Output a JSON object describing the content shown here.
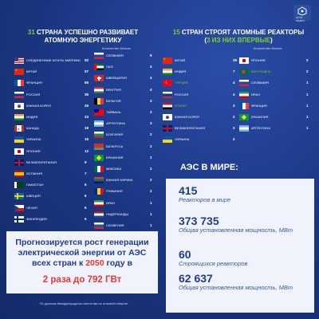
{
  "header_left": {
    "count": "31",
    "title_part1": "СТРАНА УСПЕШНО РАЗВИВАЕТ",
    "title_part2": "АТОМНУЮ ЭНЕРГЕТИКУ",
    "units_note": "Количество блоков"
  },
  "header_right": {
    "count": "15",
    "title_part1": "СТРАН СТРОЯТ АТОМНЫЕ РЕАКТОРЫ",
    "title_open": "(",
    "title_green": "3 ИЗ НИХ ВПЕРВЫЕ",
    "title_close": ")",
    "units_note": "Количество блоков"
  },
  "left_col1": [
    {
      "name": "СОЕДИНЕННЫЕ ШТАТЫ АМЕРИКИ",
      "count": "92"
    },
    {
      "name": "КИТАЙ",
      "count": "57"
    },
    {
      "name": "ФРАНЦИЯ",
      "count": "56"
    },
    {
      "name": "РОССИЯ",
      "count": "36"
    },
    {
      "name": "ЮЖНАЯ КОРЕЯ",
      "count": "26"
    },
    {
      "name": "ИНДИЯ",
      "count": "23"
    },
    {
      "name": "КАНАДА",
      "count": "19"
    },
    {
      "name": "УКРАИНА",
      "count": "15"
    },
    {
      "name": "ЯПОНИЯ",
      "count": "12"
    },
    {
      "name": "ВЕЛИКОБРИТАНИЯ",
      "count": "9"
    },
    {
      "name": "ИСПАНИЯ",
      "count": "7"
    },
    {
      "name": "ПАКИСТАН",
      "count": "6"
    },
    {
      "name": "ШВЕЦИЯ",
      "count": "6"
    },
    {
      "name": "ЧЕХИЯ",
      "count": "6"
    },
    {
      "name": "ФИНЛЯНДИЯ",
      "count": "5"
    }
  ],
  "left_col2": [
    {
      "name": "СЛОВАКИЯ",
      "count": "5"
    },
    {
      "name": "ОАЭ",
      "count": "4"
    },
    {
      "name": "ШВЕЙЦАРИЯ",
      "count": "4"
    },
    {
      "name": "ВЕНГРИЯ",
      "count": "4"
    },
    {
      "name": "БЕЛЬГИЯ",
      "count": "3"
    },
    {
      "name": "ТАЙВАНЬ",
      "count": "3"
    },
    {
      "name": "АРГЕНТИНА",
      "count": "3"
    },
    {
      "name": "БОЛГАРИЯ",
      "count": "2"
    },
    {
      "name": "БЕЛАРУСЬ",
      "count": "2"
    },
    {
      "name": "БРАЗИЛИЯ",
      "count": "2"
    },
    {
      "name": "МЕКСИКА",
      "count": "2"
    },
    {
      "name": "ЮЖНАЯ АФРИКА",
      "count": "2"
    },
    {
      "name": "РУМЫНИЯ",
      "count": "2"
    },
    {
      "name": "ИРАН",
      "count": "1"
    },
    {
      "name": "НИДЕРЛАНДЫ",
      "count": "1"
    },
    {
      "name": "СЛОВЕНИЯ",
      "count": "1"
    }
  ],
  "right_col1": [
    {
      "name": "КИТАЙ",
      "count": "26",
      "highlight": false
    },
    {
      "name": "ИНДИЯ",
      "count": "7",
      "highlight": false
    },
    {
      "name": "ТУРЦИЯ",
      "count": "4",
      "highlight": true
    },
    {
      "name": "РОССИЯ",
      "count": "4",
      "highlight": false
    },
    {
      "name": "ЕГИПЕТ",
      "count": "3",
      "highlight": true
    },
    {
      "name": "ЮЖНАЯ КОРЕЯ",
      "count": "2",
      "highlight": false
    },
    {
      "name": "ВЕЛИКОБРИТАНИЯ",
      "count": "2",
      "highlight": false
    },
    {
      "name": "УКРАИНА",
      "count": "2",
      "highlight": false
    }
  ],
  "right_col2": [
    {
      "name": "ЯПОНИЯ",
      "count": "2",
      "highlight": false
    },
    {
      "name": "БАНГЛАДЕШ",
      "count": "2",
      "highlight": true
    },
    {
      "name": "СЛОВАКИЯ",
      "count": "1",
      "highlight": false
    },
    {
      "name": "ИРАН",
      "count": "1",
      "highlight": false
    },
    {
      "name": "ФРАНЦИЯ",
      "count": "1",
      "highlight": false
    },
    {
      "name": "БРАЗИЛИЯ",
      "count": "1",
      "highlight": false
    },
    {
      "name": "АРГЕНТИНА",
      "count": "1",
      "highlight": false
    }
  ],
  "quote": {
    "line1": "Прогнозируется рост генерации",
    "line2": "электрической энергии от АЭС",
    "line3_a": "всех стран к ",
    "line3_year": "2050",
    "line3_b": " году в",
    "highlight": "2 раза до 792 ГВт"
  },
  "footer": "По данным Международного агентства по атомной энергии",
  "world": {
    "title": "АЭС В МИРЕ:",
    "stats": [
      {
        "value": "415",
        "label": "Реакторов в мире"
      },
      {
        "value": "373 735",
        "label": "Общая установленная мощность, МВт"
      },
      {
        "value": "60",
        "label": "Строящихся реакторов"
      },
      {
        "value": "62 637",
        "label": "Общая установленная мощность, МВт"
      }
    ]
  },
  "logo": {
    "caption": "АТОМ МЕДИА"
  },
  "colors": {
    "background": "#1a3580",
    "accent_green": "#7ed321",
    "accent_red": "#e53935",
    "panel": "#f0f3fb",
    "text_dark": "#1f3c8a"
  },
  "flags": {
    "СОЕДИНЕННЫЕ ШТАТЫ АМЕРИКИ": "us",
    "КИТАЙ": "cn",
    "ФРАНЦИЯ": "fr",
    "РОССИЯ": "ru",
    "ЮЖНАЯ КОРЕЯ": "kr",
    "ИНДИЯ": "in",
    "КАНАДА": "ca",
    "УКРАИНА": "ua",
    "ЯПОНИЯ": "jp",
    "ВЕЛИКОБРИТАНИЯ": "gb",
    "ИСПАНИЯ": "es",
    "ПАКИСТАН": "pk",
    "ШВЕЦИЯ": "se",
    "ЧЕХИЯ": "cz",
    "ФИНЛЯНДИЯ": "fi",
    "СЛОВАКИЯ": "sk",
    "ОАЭ": "ae",
    "ШВЕЙЦАРИЯ": "ch",
    "ВЕНГРИЯ": "hu",
    "БЕЛЬГИЯ": "be",
    "ТАЙВАНЬ": "tw",
    "АРГЕНТИНА": "ar",
    "БОЛГАРИЯ": "bg",
    "БЕЛАРУСЬ": "by",
    "БРАЗИЛИЯ": "br",
    "МЕКСИКА": "mx",
    "ЮЖНАЯ АФРИКА": "za",
    "РУМЫНИЯ": "ro",
    "ИРАН": "ir",
    "НИДЕРЛАНДЫ": "nl",
    "СЛОВЕНИЯ": "si",
    "ТУРЦИЯ": "tr",
    "ЕГИПЕТ": "eg",
    "БАНГЛАДЕШ": "bd"
  }
}
